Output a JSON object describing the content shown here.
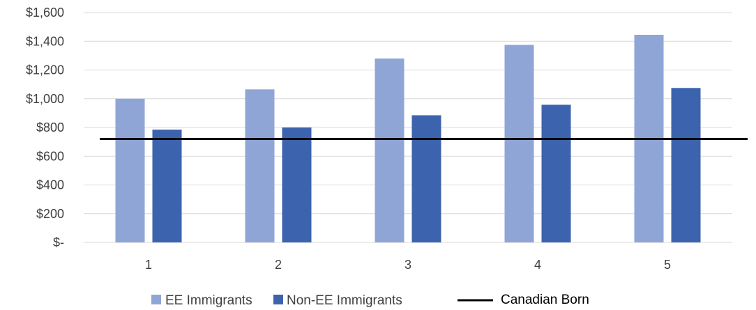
{
  "chart_data": {
    "type": "bar",
    "categories": [
      "1",
      "2",
      "3",
      "4",
      "5"
    ],
    "series": [
      {
        "name": "EE Immigrants",
        "values": [
          1000,
          1065,
          1280,
          1375,
          1445
        ],
        "color": "#8FA5D6"
      },
      {
        "name": "Non-EE Immigrants",
        "values": [
          785,
          800,
          885,
          958,
          1075
        ],
        "color": "#3C63AD"
      }
    ],
    "reference_line": {
      "name": "Canadian Born",
      "value": 720,
      "color": "#000000"
    },
    "y_ticks": [
      {
        "value": 0,
        "label": "$-"
      },
      {
        "value": 200,
        "label": "$200"
      },
      {
        "value": 400,
        "label": "$400"
      },
      {
        "value": 600,
        "label": "$600"
      },
      {
        "value": 800,
        "label": "$800"
      },
      {
        "value": 1000,
        "label": "$1,000"
      },
      {
        "value": 1200,
        "label": "$1,200"
      },
      {
        "value": 1400,
        "label": "$1,400"
      },
      {
        "value": 1600,
        "label": "$1,600"
      }
    ],
    "ylim": [
      0,
      1600
    ],
    "grid": true,
    "legend": "bottom",
    "title": "",
    "xlabel": "",
    "ylabel": ""
  }
}
